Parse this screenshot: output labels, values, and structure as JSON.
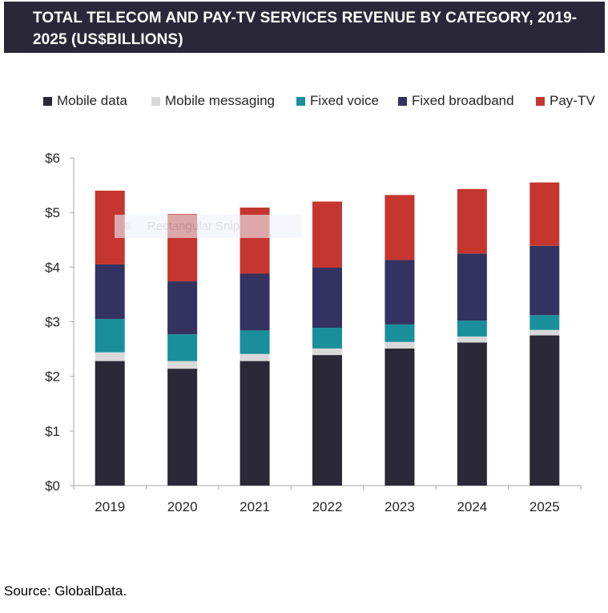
{
  "header": {
    "title_line1": "TOTAL TELECOM AND PAY-TV SERVICES REVENUE BY CATEGORY, 2019-",
    "title_line2": "2025 (US$BILLIONS)"
  },
  "overlay": {
    "ghost_text": "Rectangular Snip"
  },
  "footer": {
    "source": "Source: GlobalData."
  },
  "chart_data": {
    "type": "bar",
    "stacked": true,
    "title": "TOTAL TELECOM AND PAY-TV SERVICES REVENUE BY CATEGORY, 2019-2025 (US$BILLIONS)",
    "categories": [
      "2019",
      "2020",
      "2021",
      "2022",
      "2023",
      "2024",
      "2025"
    ],
    "series": [
      {
        "name": "Mobile data",
        "color": "#2b2838",
        "values": [
          2.28,
          2.14,
          2.28,
          2.39,
          2.51,
          2.62,
          2.75
        ]
      },
      {
        "name": "Mobile messaging",
        "color": "#d9d9d9",
        "values": [
          0.16,
          0.14,
          0.13,
          0.12,
          0.12,
          0.11,
          0.1
        ]
      },
      {
        "name": "Fixed voice",
        "color": "#1a8f9c",
        "values": [
          0.61,
          0.49,
          0.43,
          0.38,
          0.32,
          0.29,
          0.27
        ]
      },
      {
        "name": "Fixed broadband",
        "color": "#333260",
        "values": [
          1.0,
          0.97,
          1.04,
          1.1,
          1.18,
          1.23,
          1.27
        ]
      },
      {
        "name": "Pay-TV",
        "color": "#c5362f",
        "values": [
          1.35,
          1.23,
          1.21,
          1.21,
          1.19,
          1.18,
          1.16
        ]
      }
    ],
    "y_ticks": [
      "$0",
      "$1",
      "$2",
      "$3",
      "$4",
      "$5",
      "$6"
    ],
    "ylim": [
      0,
      6
    ],
    "xlabel": "",
    "ylabel": "",
    "legend_position": "top",
    "grid": false
  }
}
